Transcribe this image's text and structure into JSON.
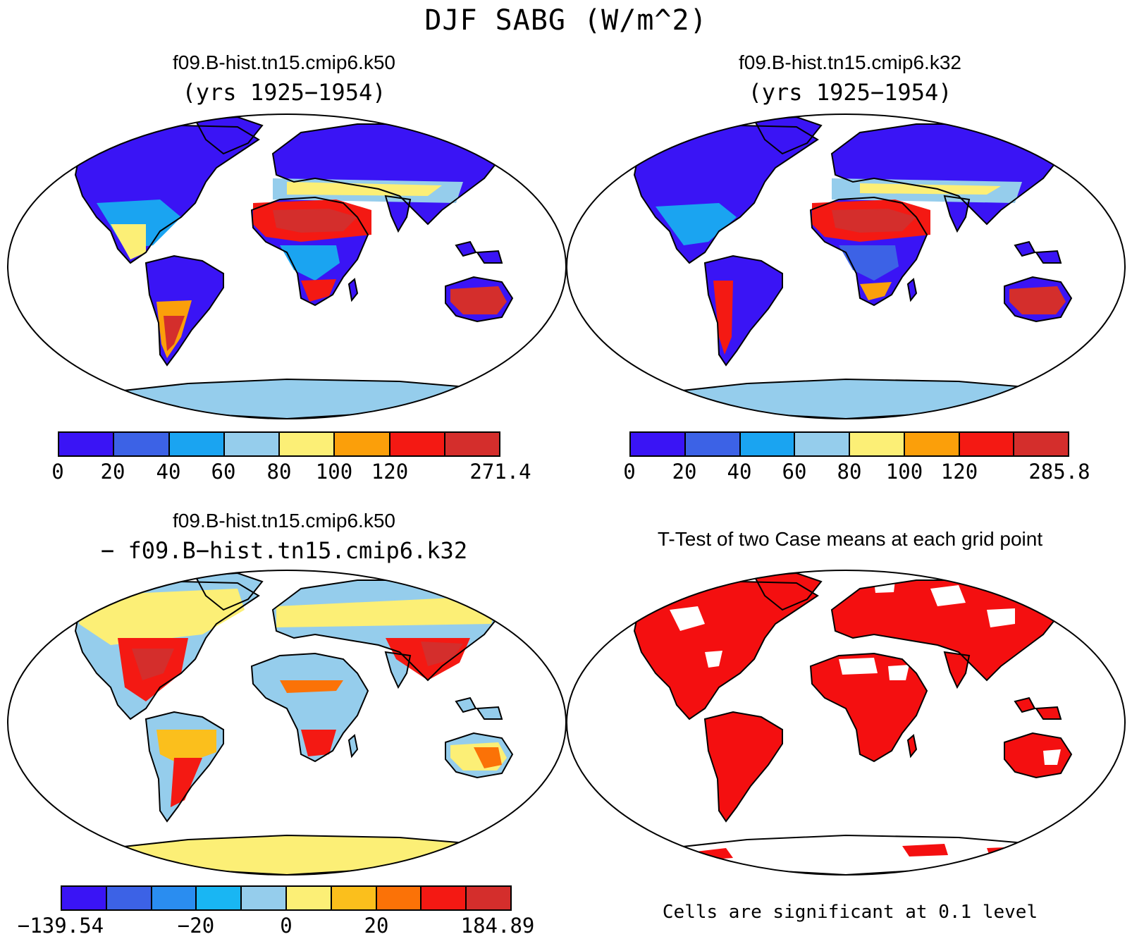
{
  "title": "DJF SABG (W/m^2)",
  "panels": {
    "top_left": {
      "title": "f09.B-hist.tn15.cmip6.k50",
      "subtitle": "(yrs 1925−1954)",
      "colorbar": {
        "colors": [
          "#3a14f5",
          "#3c62e6",
          "#1aa4f1",
          "#95cdec",
          "#fcef76",
          "#fb9f0a",
          "#f41913",
          "#d42e2c"
        ],
        "labels": [
          "0",
          "20",
          "40",
          "60",
          "80",
          "100",
          "120",
          "271.4"
        ]
      }
    },
    "top_right": {
      "title": "f09.B-hist.tn15.cmip6.k32",
      "subtitle": "(yrs 1925−1954)",
      "colorbar": {
        "colors": [
          "#3a14f5",
          "#3c62e6",
          "#1aa4f1",
          "#95cdec",
          "#fcef76",
          "#fb9f0a",
          "#f41913",
          "#d42e2c"
        ],
        "labels": [
          "0",
          "20",
          "40",
          "60",
          "80",
          "100",
          "120",
          "285.8"
        ]
      }
    },
    "bottom_left": {
      "title": "f09.B-hist.tn15.cmip6.k50",
      "subtitle": "− f09.B−hist.tn15.cmip6.k32",
      "colorbar": {
        "colors": [
          "#3a14f5",
          "#3c62e6",
          "#2a8df0",
          "#19b6f3",
          "#95cdec",
          "#fcef76",
          "#fbbf1c",
          "#fb7207",
          "#f41913",
          "#d42e2c"
        ],
        "labels": [
          "−139.54",
          "−20",
          "0",
          "20",
          "184.89"
        ]
      }
    },
    "bottom_right": {
      "title": "T-Test of two Case means at each grid point",
      "note": "Cells are significant at 0.1 level",
      "significant_color": "#f40f10"
    }
  }
}
